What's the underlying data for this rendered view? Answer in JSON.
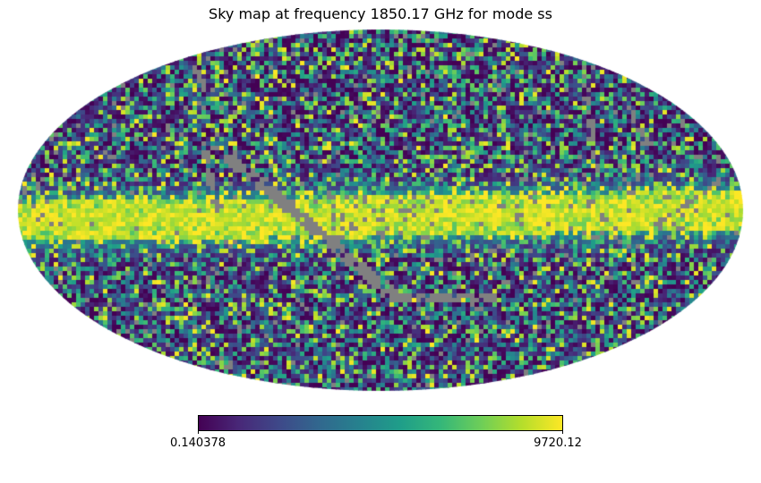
{
  "chart_data": {
    "type": "heatmap",
    "projection": "mollweide",
    "title": "Sky map at frequency 1850.17 GHz for mode ss",
    "colormap": "viridis",
    "colorbar": {
      "min": 0.140378,
      "max": 9720.12,
      "min_label": "0.140378",
      "max_label": "9720.12",
      "placement": "bottom"
    },
    "bad_value_color": "#808080",
    "features": [
      "bright galactic plane band along equator (high values)",
      "gray masked scan-strip pixels"
    ]
  }
}
